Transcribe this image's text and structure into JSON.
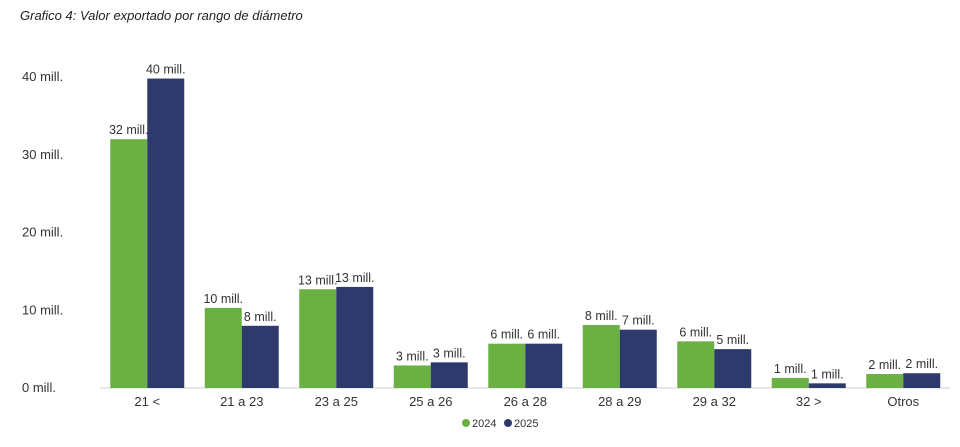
{
  "chart_data": {
    "type": "bar",
    "title": "Grafico 4: Valor exportado por rango de diámetro",
    "xlabel": "",
    "ylabel": "",
    "categories": [
      "21 <",
      "21 a 23",
      "23 a 25",
      "25 a 26",
      "26 a 28",
      "28 a 29",
      "29 a 32",
      "32 >",
      "Otros"
    ],
    "series": [
      {
        "name": "2024",
        "color": "#6ab042",
        "values": [
          32,
          10.3,
          12.7,
          2.9,
          5.7,
          8.1,
          6.0,
          1.3,
          1.8
        ],
        "labels": [
          "32 mill.",
          "10 mill.",
          "13 mill.",
          "3 mill.",
          "6 mill.",
          "8 mill.",
          "6 mill.",
          "1 mill.",
          "2 mill."
        ]
      },
      {
        "name": "2025",
        "color": "#2e3a6c",
        "values": [
          39.8,
          8.0,
          13.0,
          3.3,
          5.7,
          7.5,
          5.0,
          0.6,
          1.9
        ],
        "labels": [
          "40 mill.",
          "8 mill.",
          "13 mill.",
          "3 mill.",
          "6 mill.",
          "7 mill.",
          "5 mill.",
          "1 mill.",
          "2 mill."
        ]
      }
    ],
    "ylim": [
      0,
      40
    ],
    "yticks": [
      0,
      10,
      20,
      30,
      40
    ],
    "ytick_labels": [
      "0 mill.",
      "10 mill.",
      "20 mill.",
      "30 mill.",
      "40 mill."
    ],
    "grid": false,
    "legend": {
      "placement": "bottom-center"
    }
  }
}
